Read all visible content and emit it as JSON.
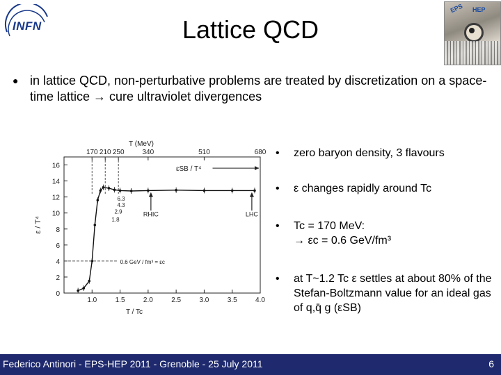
{
  "header": {
    "logo_text": "INFN",
    "title": "Lattice QCD",
    "conference_logo_texts": [
      "EPS",
      "HEP"
    ]
  },
  "intro": {
    "bullet": "in lattice QCD,  non-perturbative problems are treated by discretization on a space-time lattice → cure ultraviolet divergences"
  },
  "chart_data": {
    "type": "line",
    "xlabel": "T / Tc",
    "ylabel": "ε / T⁴",
    "top_axis_label": "T (MeV)",
    "top_ticks": [
      "170",
      "210",
      "250",
      "340",
      "510",
      "680"
    ],
    "x_ticks": [
      "1.0",
      "1.5",
      "2.0",
      "2.5",
      "3.0",
      "3.5",
      "4.0"
    ],
    "y_ticks": [
      "0",
      "2",
      "4",
      "6",
      "8",
      "10",
      "12",
      "14",
      "16"
    ],
    "xlim": [
      0.5,
      4.0
    ],
    "ylim": [
      0,
      17
    ],
    "sb_limit": 15.6,
    "sb_label": "εSB / T⁴",
    "series": [
      {
        "name": "lattice",
        "x": [
          0.75,
          0.85,
          0.95,
          1.0,
          1.05,
          1.1,
          1.15,
          1.2,
          1.3,
          1.4,
          1.5,
          1.7,
          2.0,
          2.5,
          3.0,
          3.5,
          3.9
        ],
        "y": [
          0.3,
          0.6,
          1.5,
          4.0,
          8.5,
          11.6,
          12.8,
          13.2,
          13.1,
          12.9,
          12.8,
          12.75,
          12.8,
          12.85,
          12.8,
          12.8,
          12.8
        ]
      }
    ],
    "annotations": [
      {
        "text": "0.6 GeV / fm³ = εc",
        "x": 1.0,
        "y": 4.0
      },
      {
        "text": "1.8"
      },
      {
        "text": "2.9"
      },
      {
        "text": "4.3"
      },
      {
        "text": "6.3"
      }
    ],
    "markers": [
      {
        "label": "RHIC",
        "x": 2.05
      },
      {
        "label": "LHC",
        "x": 3.85
      }
    ]
  },
  "points": [
    {
      "bullet": "•",
      "text": "zero baryon density, 3 flavours"
    },
    {
      "bullet": "•",
      "text": " ε changes rapidly around Tc"
    },
    {
      "bullet": "•",
      "line1": "Tc = 170 MeV:",
      "line2": "→ εc = 0.6 GeV/fm³"
    },
    {
      "bullet": "•",
      "text": "at T~1.2 Tc  ε settles at about 80% of the Stefan-Boltzmann value for an ideal gas of q,q̄ g (εSB)"
    }
  ],
  "footer": {
    "text": "Federico Antinori - EPS-HEP 2011 - Grenoble - 25 July 2011",
    "page": "6"
  }
}
